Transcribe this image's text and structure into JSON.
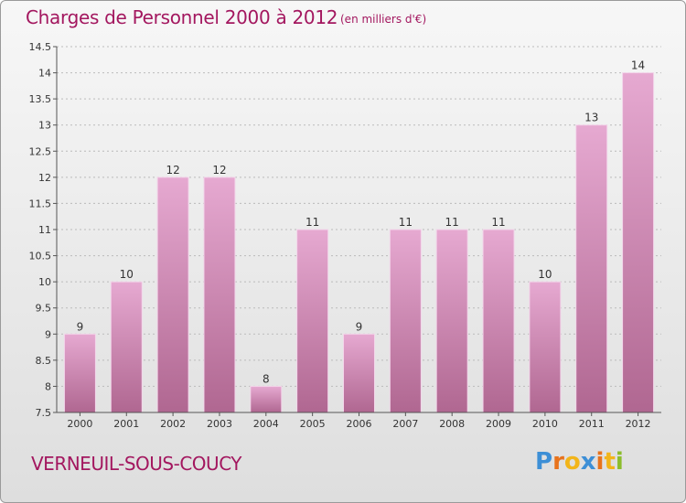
{
  "title": "Charges de Personnel 2000 à 2012",
  "subtitle": "(en milliers d'€)",
  "commune": "VERNEUIL-SOUS-COUCY",
  "logo": {
    "letters": [
      "P",
      "r",
      "o",
      "x",
      "i",
      "t",
      "i"
    ],
    "colors": [
      "#3d8fd6",
      "#e8731c",
      "#f2b51a",
      "#3d8fd6",
      "#e8731c",
      "#f2b51a",
      "#8bbd2c"
    ]
  },
  "colors": {
    "bar_light": "#e6a9d1",
    "bar_dark": "#b06791",
    "text_accent": "#a3175f",
    "grid": "#bbbbbb"
  },
  "chart_data": {
    "type": "bar",
    "categories": [
      "2000",
      "2001",
      "2002",
      "2003",
      "2004",
      "2005",
      "2006",
      "2007",
      "2008",
      "2009",
      "2010",
      "2011",
      "2012"
    ],
    "values": [
      9,
      10,
      12,
      12,
      8,
      11,
      9,
      11,
      11,
      11,
      10,
      13,
      14
    ],
    "data_labels": [
      "9",
      "10",
      "12",
      "12",
      "8",
      "11",
      "9",
      "11",
      "11",
      "11",
      "10",
      "13",
      "14"
    ],
    "y_ticks": [
      "7.5",
      "8",
      "8.5",
      "9",
      "9.5",
      "10",
      "10.5",
      "11",
      "11.5",
      "12",
      "12.5",
      "13",
      "13.5",
      "14",
      "14.5"
    ],
    "ylim": [
      7.5,
      14.5
    ],
    "grid": true
  }
}
